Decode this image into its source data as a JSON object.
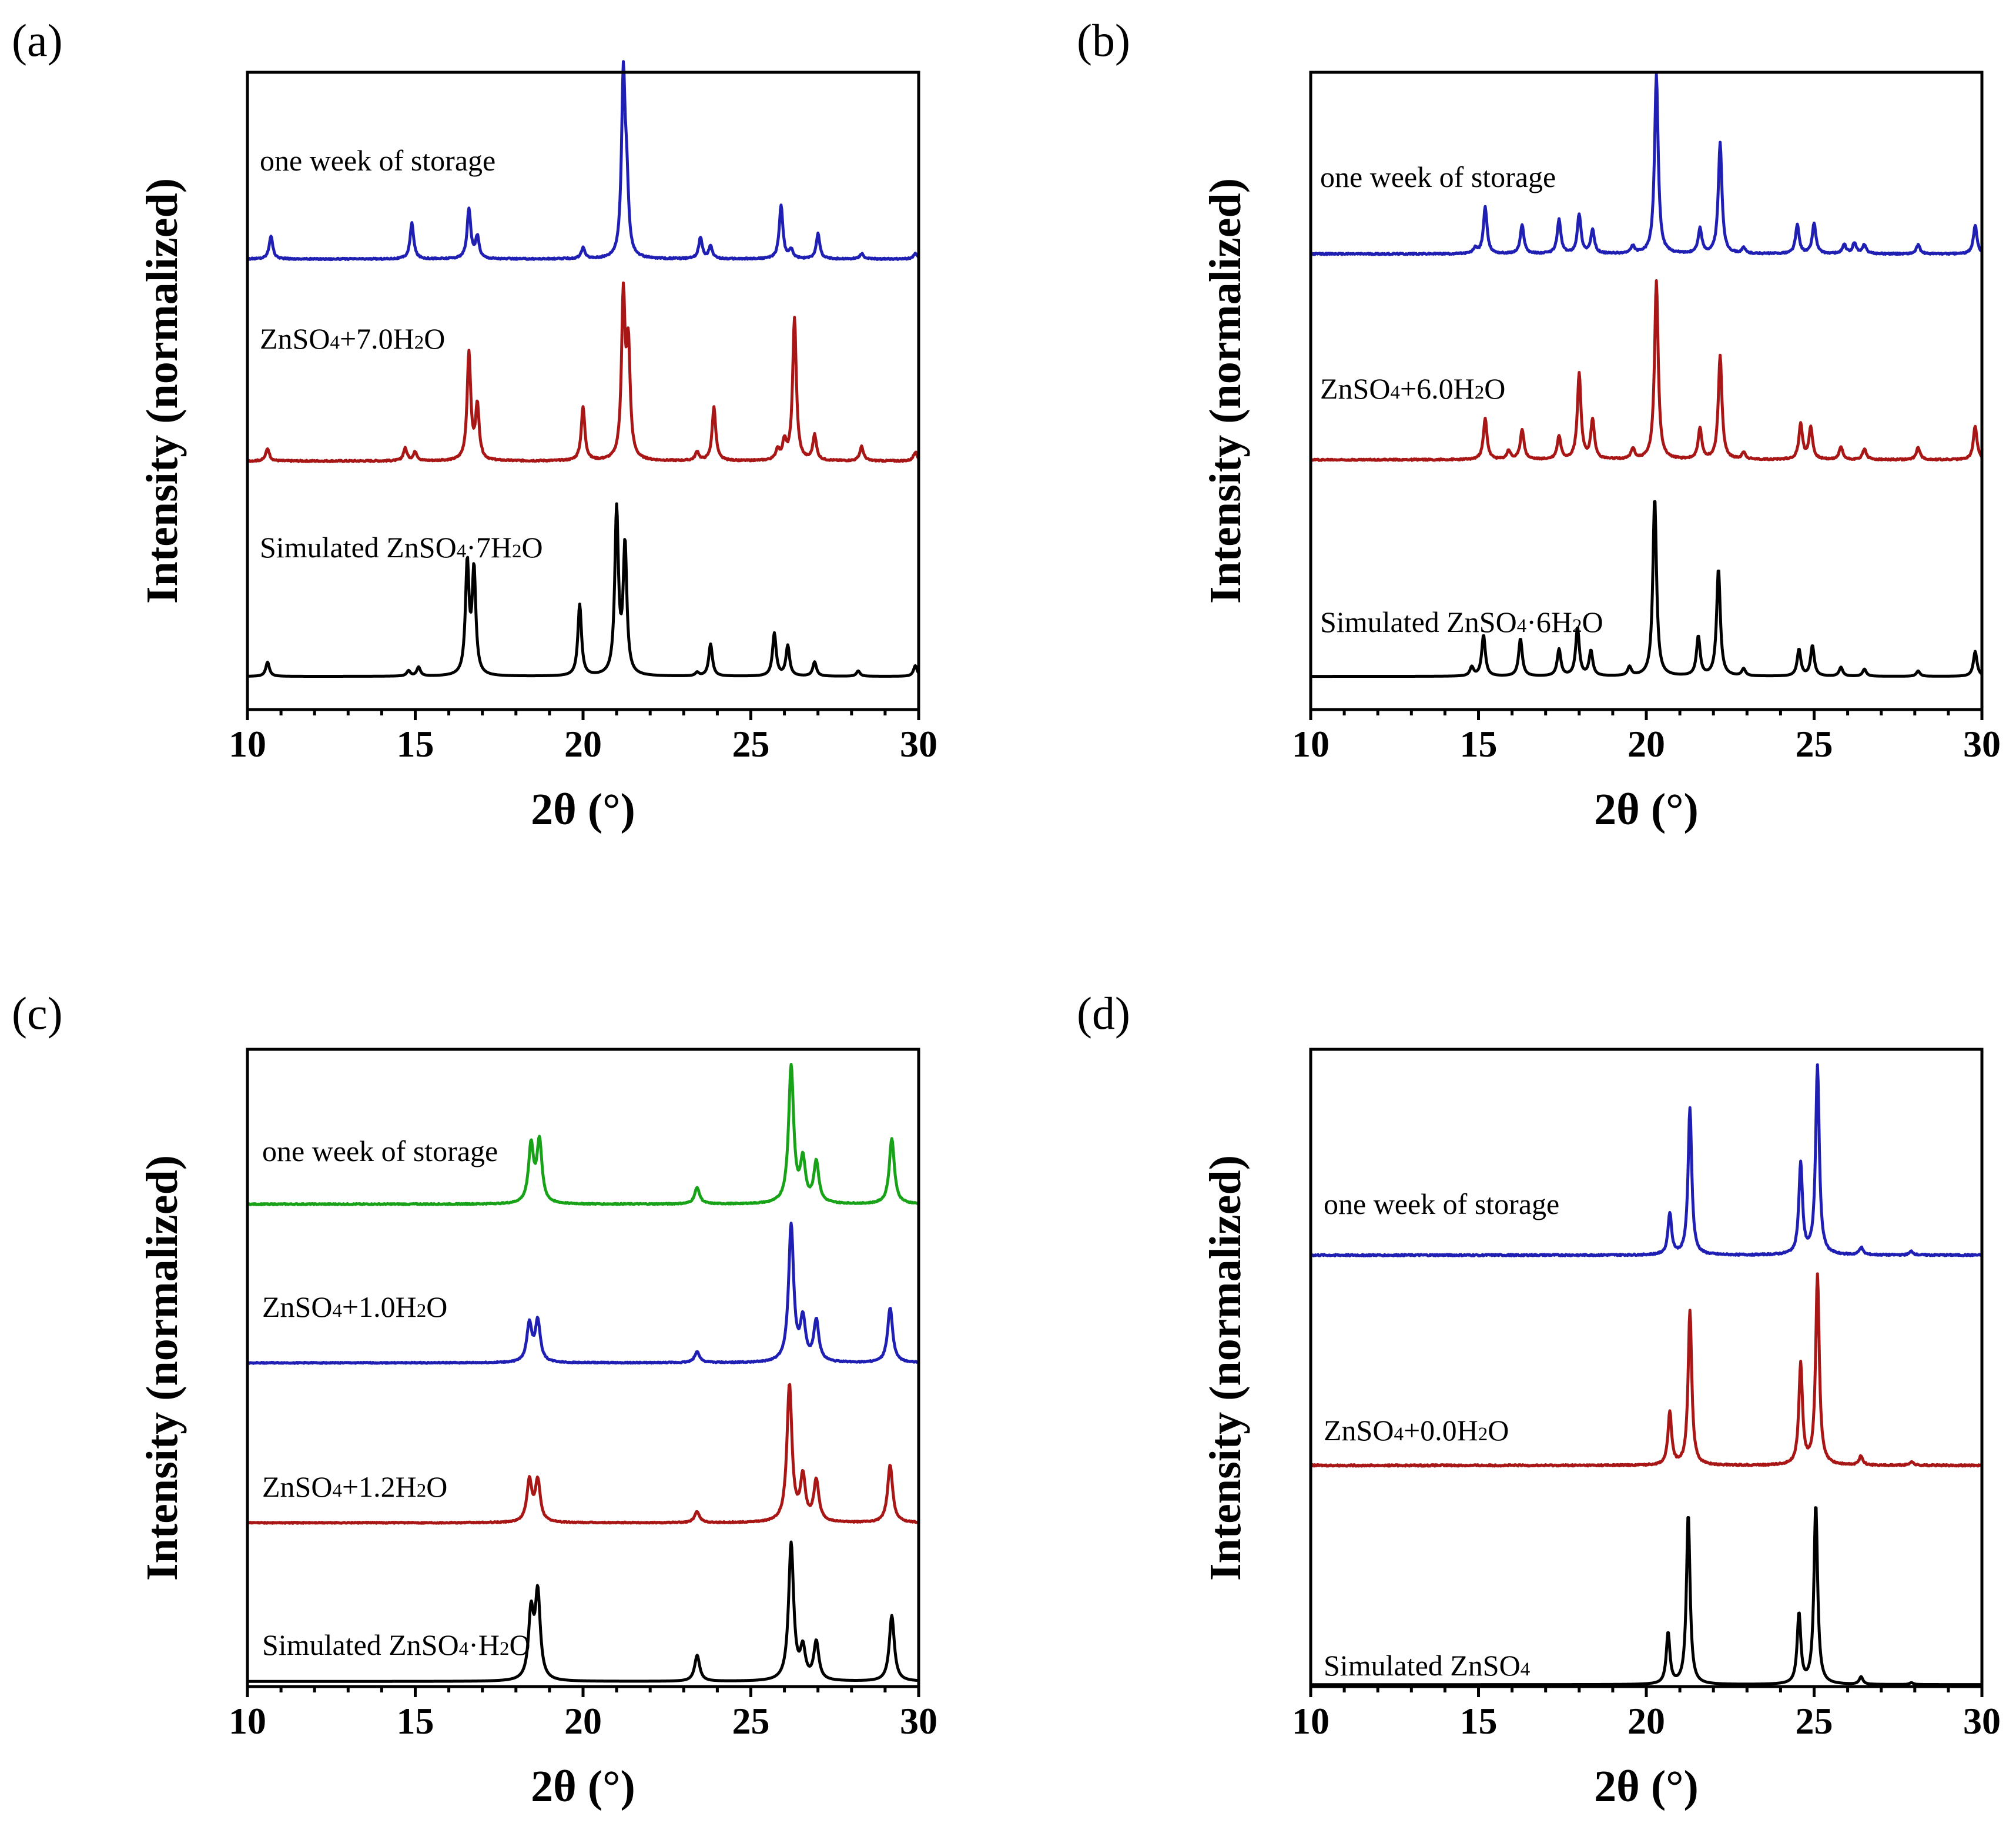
{
  "colors": {
    "blue": "#1f1fb4",
    "red": "#a81616",
    "green": "#17a217",
    "black": "#000000"
  },
  "chart_data": [
    {
      "type": "line",
      "panel_label": "(a)",
      "xlabel": "2θ (°)",
      "ylabel": "Intensity (normalized)",
      "xlim": [
        10,
        30
      ],
      "xticks": [
        "10",
        "15",
        "20",
        "25",
        "30"
      ],
      "series": [
        {
          "name": "one week of storage",
          "label_parts": [
            {
              "t": "one week of storage"
            }
          ],
          "color": "blue",
          "baseline": 0.707,
          "scale": 0.28,
          "peaks": [
            [
              10.7,
              0.13
            ],
            [
              14.9,
              0.2
            ],
            [
              16.6,
              0.28
            ],
            [
              16.85,
              0.12
            ],
            [
              20.0,
              0.06
            ],
            [
              21.2,
              1.0
            ],
            [
              21.3,
              0.35
            ],
            [
              23.5,
              0.12
            ],
            [
              23.8,
              0.07
            ],
            [
              25.9,
              0.3
            ],
            [
              26.2,
              0.05
            ],
            [
              27.0,
              0.14
            ],
            [
              28.3,
              0.03
            ],
            [
              29.9,
              0.03
            ]
          ]
        },
        {
          "name": "ZnSO4+7.0H2O",
          "label_parts": [
            {
              "t": "ZnSO"
            },
            {
              "t": "4",
              "sub": true
            },
            {
              "t": "+7.0H"
            },
            {
              "t": "2",
              "sub": true
            },
            {
              "t": "O"
            }
          ],
          "color": "red",
          "baseline": 0.39,
          "scale": 0.28,
          "peaks": [
            [
              10.6,
              0.07
            ],
            [
              14.7,
              0.07
            ],
            [
              15.0,
              0.05
            ],
            [
              16.6,
              0.6
            ],
            [
              16.85,
              0.3
            ],
            [
              20.0,
              0.3
            ],
            [
              21.2,
              0.9
            ],
            [
              21.35,
              0.6
            ],
            [
              23.4,
              0.05
            ],
            [
              23.9,
              0.3
            ],
            [
              25.8,
              0.06
            ],
            [
              26.0,
              0.1
            ],
            [
              26.3,
              0.8
            ],
            [
              26.9,
              0.14
            ],
            [
              28.3,
              0.08
            ],
            [
              29.9,
              0.05
            ]
          ]
        },
        {
          "name": "Simulated ZnSO4·7H2O",
          "label_parts": [
            {
              "t": "Simulated ZnSO"
            },
            {
              "t": "4",
              "sub": true
            },
            {
              "t": "·7H"
            },
            {
              "t": "2",
              "sub": true
            },
            {
              "t": "O"
            }
          ],
          "color": "black",
          "baseline": 0.052,
          "scale": 0.28,
          "peaks": [
            [
              10.6,
              0.08
            ],
            [
              14.8,
              0.03
            ],
            [
              15.1,
              0.05
            ],
            [
              16.55,
              0.62
            ],
            [
              16.75,
              0.58
            ],
            [
              19.9,
              0.4
            ],
            [
              21.0,
              0.92
            ],
            [
              21.25,
              0.72
            ],
            [
              23.4,
              0.02
            ],
            [
              23.8,
              0.18
            ],
            [
              25.7,
              0.24
            ],
            [
              26.1,
              0.17
            ],
            [
              26.9,
              0.08
            ],
            [
              28.2,
              0.03
            ],
            [
              29.9,
              0.06
            ]
          ]
        }
      ]
    },
    {
      "type": "line",
      "panel_label": "(b)",
      "xlabel": "2θ (°)",
      "ylabel": "Intensity (normalized)",
      "xlim": [
        10,
        30
      ],
      "xticks": [
        "10",
        "15",
        "20",
        "25",
        "30"
      ],
      "series": [
        {
          "name": "one week of storage",
          "label_parts": [
            {
              "t": "one week of storage"
            }
          ],
          "color": "blue",
          "baseline": 0.715,
          "scale": 0.28,
          "peaks": [
            [
              14.9,
              0.03
            ],
            [
              15.2,
              0.26
            ],
            [
              16.3,
              0.16
            ],
            [
              17.4,
              0.19
            ],
            [
              18.0,
              0.22
            ],
            [
              18.4,
              0.13
            ],
            [
              19.6,
              0.04
            ],
            [
              20.3,
              1.0
            ],
            [
              21.6,
              0.14
            ],
            [
              22.2,
              0.62
            ],
            [
              22.9,
              0.03
            ],
            [
              24.5,
              0.16
            ],
            [
              25.0,
              0.17
            ],
            [
              25.9,
              0.05
            ],
            [
              26.2,
              0.06
            ],
            [
              26.5,
              0.05
            ],
            [
              28.1,
              0.05
            ],
            [
              29.8,
              0.16
            ]
          ]
        },
        {
          "name": "ZnSO4+6.0H2O",
          "label_parts": [
            {
              "t": "ZnSO"
            },
            {
              "t": "4",
              "sub": true
            },
            {
              "t": "+6.0H"
            },
            {
              "t": "2",
              "sub": true
            },
            {
              "t": "O"
            }
          ],
          "color": "red",
          "baseline": 0.392,
          "scale": 0.28,
          "peaks": [
            [
              15.2,
              0.23
            ],
            [
              15.9,
              0.05
            ],
            [
              16.3,
              0.17
            ],
            [
              17.4,
              0.13
            ],
            [
              18.0,
              0.48
            ],
            [
              18.4,
              0.22
            ],
            [
              19.6,
              0.06
            ],
            [
              20.3,
              1.0
            ],
            [
              21.6,
              0.17
            ],
            [
              22.2,
              0.58
            ],
            [
              22.9,
              0.04
            ],
            [
              24.6,
              0.2
            ],
            [
              24.9,
              0.18
            ],
            [
              25.8,
              0.07
            ],
            [
              26.5,
              0.06
            ],
            [
              28.1,
              0.07
            ],
            [
              29.8,
              0.19
            ]
          ]
        },
        {
          "name": "Simulated ZnSO4·6H2O",
          "label_parts": [
            {
              "t": "Simulated ZnSO"
            },
            {
              "t": "4",
              "sub": true
            },
            {
              "t": "·6H"
            },
            {
              "t": "2",
              "sub": true
            },
            {
              "t": "O"
            }
          ],
          "color": "black",
          "baseline": 0.052,
          "scale": 0.28,
          "peaks": [
            [
              14.8,
              0.05
            ],
            [
              15.15,
              0.23
            ],
            [
              16.25,
              0.21
            ],
            [
              17.4,
              0.15
            ],
            [
              17.95,
              0.27
            ],
            [
              18.35,
              0.14
            ],
            [
              19.5,
              0.05
            ],
            [
              20.25,
              1.0
            ],
            [
              21.55,
              0.22
            ],
            [
              22.15,
              0.6
            ],
            [
              22.9,
              0.04
            ],
            [
              24.55,
              0.15
            ],
            [
              24.95,
              0.17
            ],
            [
              25.8,
              0.05
            ],
            [
              26.5,
              0.04
            ],
            [
              28.1,
              0.03
            ],
            [
              29.8,
              0.14
            ]
          ]
        }
      ]
    },
    {
      "type": "line",
      "panel_label": "(c)",
      "xlabel": "2θ (°)",
      "ylabel": "Intensity (normalized)",
      "xlim": [
        10,
        30
      ],
      "xticks": [
        "10",
        "15",
        "20",
        "25",
        "30"
      ],
      "series": [
        {
          "name": "one week of storage",
          "label_parts": [
            {
              "t": "one week of storage"
            }
          ],
          "color": "green",
          "baseline": 0.757,
          "scale": 0.215,
          "peaks": [
            [
              18.45,
              0.42
            ],
            [
              18.7,
              0.45
            ],
            [
              23.4,
              0.12
            ],
            [
              26.2,
              1.0
            ],
            [
              26.55,
              0.3
            ],
            [
              26.95,
              0.3
            ],
            [
              29.2,
              0.48
            ]
          ]
        },
        {
          "name": "ZnSO4+1.0H2O",
          "label_parts": [
            {
              "t": "ZnSO"
            },
            {
              "t": "4",
              "sub": true
            },
            {
              "t": "+1.0H"
            },
            {
              "t": "2",
              "sub": true
            },
            {
              "t": "O"
            }
          ],
          "color": "blue",
          "baseline": 0.508,
          "scale": 0.215,
          "peaks": [
            [
              18.4,
              0.28
            ],
            [
              18.65,
              0.3
            ],
            [
              23.4,
              0.08
            ],
            [
              26.2,
              1.0
            ],
            [
              26.55,
              0.3
            ],
            [
              26.95,
              0.3
            ],
            [
              29.15,
              0.4
            ]
          ]
        },
        {
          "name": "ZnSO4+1.2H2O",
          "label_parts": [
            {
              "t": "ZnSO"
            },
            {
              "t": "4",
              "sub": true
            },
            {
              "t": "+1.2H"
            },
            {
              "t": "2",
              "sub": true
            },
            {
              "t": "O"
            }
          ],
          "color": "red",
          "baseline": 0.257,
          "scale": 0.215,
          "peaks": [
            [
              18.4,
              0.3
            ],
            [
              18.65,
              0.3
            ],
            [
              23.4,
              0.08
            ],
            [
              26.15,
              1.0
            ],
            [
              26.55,
              0.32
            ],
            [
              26.95,
              0.3
            ],
            [
              29.15,
              0.42
            ]
          ]
        },
        {
          "name": "Simulated ZnSO4·H2O",
          "label_parts": [
            {
              "t": "Simulated ZnSO"
            },
            {
              "t": "4",
              "sub": true
            },
            {
              "t": "·H"
            },
            {
              "t": "2",
              "sub": true
            },
            {
              "t": "O"
            }
          ],
          "color": "black",
          "baseline": 0.008,
          "scale": 0.215,
          "peaks": [
            [
              18.45,
              0.48
            ],
            [
              18.65,
              0.62
            ],
            [
              23.4,
              0.19
            ],
            [
              26.2,
              1.0
            ],
            [
              26.55,
              0.22
            ],
            [
              26.95,
              0.28
            ],
            [
              29.2,
              0.48
            ]
          ]
        }
      ]
    },
    {
      "type": "line",
      "panel_label": "(d)",
      "xlabel": "2θ (°)",
      "ylabel": "Intensity (normalized)",
      "xlim": [
        10,
        30
      ],
      "xticks": [
        "10",
        "15",
        "20",
        "25",
        "30"
      ],
      "series": [
        {
          "name": "one week of storage",
          "label_parts": [
            {
              "t": "one week of storage"
            }
          ],
          "color": "blue",
          "baseline": 0.677,
          "scale": 0.297,
          "peaks": [
            [
              20.7,
              0.22
            ],
            [
              21.3,
              0.78
            ],
            [
              24.6,
              0.48
            ],
            [
              25.1,
              1.0
            ],
            [
              26.4,
              0.04
            ],
            [
              27.9,
              0.02
            ]
          ]
        },
        {
          "name": "ZnSO4+0.0H2O",
          "label_parts": [
            {
              "t": "ZnSO"
            },
            {
              "t": "4",
              "sub": true
            },
            {
              "t": "+0.0H"
            },
            {
              "t": "2",
              "sub": true
            },
            {
              "t": "O"
            }
          ],
          "color": "red",
          "baseline": 0.347,
          "scale": 0.297,
          "peaks": [
            [
              20.7,
              0.28
            ],
            [
              21.3,
              0.82
            ],
            [
              24.6,
              0.53
            ],
            [
              25.1,
              1.0
            ],
            [
              26.4,
              0.05
            ],
            [
              27.9,
              0.02
            ]
          ]
        },
        {
          "name": "Simulated ZnSO4",
          "label_parts": [
            {
              "t": "Simulated ZnSO"
            },
            {
              "t": "4",
              "sub": true
            }
          ],
          "color": "black",
          "baseline": 0.003,
          "scale": 0.297,
          "peaks": [
            [
              20.65,
              0.27
            ],
            [
              21.25,
              0.9
            ],
            [
              24.55,
              0.37
            ],
            [
              25.05,
              0.95
            ],
            [
              26.4,
              0.04
            ],
            [
              27.9,
              0.01
            ]
          ]
        }
      ]
    }
  ]
}
